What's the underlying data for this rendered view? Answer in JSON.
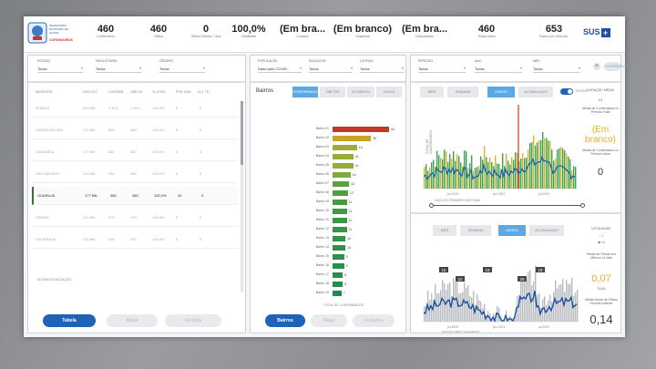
{
  "header": {
    "logo_text": "SECRETARIA MUNICIPAL DE SAÚDE",
    "logo_sub": "CORONAVÍRUS",
    "kpis": [
      {
        "value": "460",
        "label": "Confirmados"
      },
      {
        "value": "460",
        "label": "Óbitos"
      },
      {
        "value": "0",
        "label": "Óbitos Últimos 7 dias"
      },
      {
        "value": "100,0%",
        "label": "Letalidade"
      },
      {
        "value": "(Em bra...",
        "label": "Curados"
      },
      {
        "value": "(Em branco)",
        "label": "Suspeitos"
      },
      {
        "value": "(Em bra...",
        "label": "Descartados"
      },
      {
        "value": "460",
        "label": "Testes totais"
      },
      {
        "value": "653",
        "label": "Testes por 100k hab."
      }
    ],
    "sus_label": "SUS"
  },
  "left_panel": {
    "filters": [
      {
        "label": "ESTADO",
        "value": "Todos"
      },
      {
        "label": "FAIXA ETÁRIA",
        "value": "Todos"
      },
      {
        "label": "GÊNERO",
        "value": "Todos"
      }
    ],
    "table_headers": [
      "MUNICÍPIO",
      "DATA ÚLT.",
      "CONFIRM.",
      "ÓBITOS",
      "% LETAL.",
      "POR 100K",
      "ÚLT. 7D"
    ],
    "rows": [
      {
        "name": "ATIBAIA",
        "date": "364 MIL",
        "c": "1.513",
        "o": "1.513",
        "p": "100,0%",
        "k": "0",
        "d": "0",
        "sel": false
      },
      {
        "name": "CARAGUATUBA",
        "date": "171 MIL",
        "c": "650",
        "o": "650",
        "p": "100,0%",
        "k": "0",
        "d": "0",
        "sel": false
      },
      {
        "name": "CANANÉIA",
        "date": "177 MIL",
        "c": "652",
        "o": "652",
        "p": "100,0%",
        "k": "0",
        "d": "0",
        "sel": false
      },
      {
        "name": "SÃO MATEUS",
        "date": "133 MIL",
        "c": "345",
        "o": "345",
        "p": "100,0%",
        "k": "0",
        "d": "0",
        "sel": false
      },
      {
        "name": "GUARUJÁ",
        "date": "177 MIL",
        "c": "460",
        "o": "460",
        "p": "100,0%",
        "k": "10",
        "d": "0",
        "sel": true
      },
      {
        "name": "ITATIBA",
        "date": "121 MIL",
        "c": "370",
        "o": "370",
        "p": "100,0%",
        "k": "0",
        "d": "0",
        "sel": false
      },
      {
        "name": "ITUVERAVA",
        "date": "121 MIL",
        "c": "252",
        "o": "252",
        "p": "100,0%",
        "k": "0",
        "d": "0",
        "sel": false
      }
    ],
    "footnote": "ÚLTIMA ATUALIZAÇÃO",
    "tabs": [
      "Tabela",
      "Mapa",
      "Ranking"
    ]
  },
  "mid_panel": {
    "filters": [
      {
        "label": "POPULAÇÃO",
        "value": "Dado pelo COVID..."
      },
      {
        "label": "RAÇA/COR",
        "value": "Todos"
      },
      {
        "label": "OUTRAS",
        "value": "Todos"
      }
    ],
    "title": "Bairros",
    "buttons": [
      "CONFIRMADOS",
      "ÓBITOS",
      "ATIVADOS",
      "TAXAS"
    ],
    "bars": [
      {
        "label": "Bairro 01",
        "value": 44,
        "color": "#c0392b"
      },
      {
        "label": "Bairro 02",
        "value": 30,
        "color": "#c9a227"
      },
      {
        "label": "Bairro 03",
        "value": 19,
        "color": "#a7a83a"
      },
      {
        "label": "Bairro 04",
        "value": 16,
        "color": "#9aab3a"
      },
      {
        "label": "Bairro 05",
        "value": 16,
        "color": "#92ad3c"
      },
      {
        "label": "Bairro 06",
        "value": 14,
        "color": "#7aab3c"
      },
      {
        "label": "Bairro 07",
        "value": 13,
        "color": "#5aa33c"
      },
      {
        "label": "Bairro 08",
        "value": 12,
        "color": "#4f9f3e"
      },
      {
        "label": "Bairro 09",
        "value": 11,
        "color": "#449b40"
      },
      {
        "label": "Bairro 10",
        "value": 11,
        "color": "#3f9a42"
      },
      {
        "label": "Bairro 11",
        "value": 11,
        "color": "#3a9844"
      },
      {
        "label": "Bairro 12",
        "value": 11,
        "color": "#369646"
      },
      {
        "label": "Bairro 13",
        "value": 10,
        "color": "#329448"
      },
      {
        "label": "Bairro 14",
        "value": 10,
        "color": "#30924a"
      },
      {
        "label": "Bairro 15",
        "value": 9,
        "color": "#2e904b"
      },
      {
        "label": "Bairro 16",
        "value": 9,
        "color": "#2c8e4c"
      },
      {
        "label": "Bairro 17",
        "value": 8,
        "color": "#2a8c4d"
      },
      {
        "label": "Bairro 18",
        "value": 8,
        "color": "#288a4e"
      },
      {
        "label": "Bairro 19",
        "value": 7,
        "color": "#26884f"
      }
    ],
    "axis_caption": "TOTAL DE CONFIRMADOS",
    "tabs": [
      "Bairros",
      "Mapa",
      "Unidades"
    ]
  },
  "right_panel": {
    "filters": [
      {
        "label": "PERÍODO",
        "value": "Todos"
      },
      {
        "label": "ANO",
        "value": "Todos"
      },
      {
        "label": "MÊS",
        "value": "Todos"
      }
    ],
    "confirm_btn": "CONFIRMADOS",
    "top_buttons": [
      "MÊS",
      "SEMANA",
      "DIÁRIO",
      "ACUMULADO"
    ],
    "toggle_label": "TESTES",
    "top_axis": "TOTAL DE CONFIRMADOS",
    "top_x_labels": [
      "jul 2020",
      "jan 2021",
      "jul 2021"
    ],
    "top_caption": "DATA DO PRIMEIRO SINTOMA",
    "side_top_title": "DURAÇÃO MÉDIA",
    "side_top_val1": "14",
    "side_top_label": "Média de Confirmados no Período Total",
    "side_big": "(Em branco)",
    "side_big_label": "Média de Confirmados no Período Atual",
    "side_zero": "0",
    "bot_buttons": [
      "MÊS",
      "SEMANA",
      "DIÁRIO",
      "ACUMULADO"
    ],
    "bot_x_labels": [
      "jul 2020",
      "jan 2021",
      "jul 2021"
    ],
    "bot_caption": "DATA DO ÓBITO OU EVENTO",
    "side_bot_title": "LETALIDADE",
    "side_bot_opt1": "7",
    "side_bot_opt2": "14",
    "side_bot_label": "Média de Óbitos dos Últimos 14 dias",
    "side_bot_yellow": "0,07",
    "side_bot_yellow_label": "TAXA",
    "side_bot_rate_label": "Média Móvel de Óbitos Período Anterior",
    "side_bot_num": "0,14",
    "peak_labels": [
      "15",
      "22",
      "19",
      "28",
      "19"
    ]
  }
}
